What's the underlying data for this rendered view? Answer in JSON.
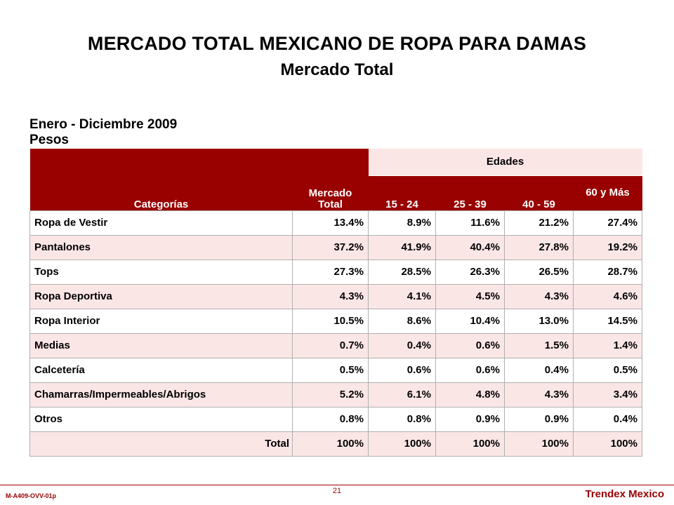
{
  "title": "MERCADO TOTAL MEXICANO DE ROPA PARA DAMAS",
  "subtitle": "Mercado Total",
  "period": "Enero - Diciembre 2009",
  "unit": "Pesos",
  "table": {
    "headers": {
      "categories": "Categorías",
      "market_total": "Mercado Total",
      "ages_group": "Edades",
      "ages": [
        "15 - 24",
        "25 - 39",
        "40 - 59",
        "60 y Más"
      ]
    },
    "rows": [
      {
        "category": "Ropa de Vestir",
        "values": [
          "13.4%",
          "8.9%",
          "11.6%",
          "21.2%",
          "27.4%"
        ]
      },
      {
        "category": "Pantalones",
        "values": [
          "37.2%",
          "41.9%",
          "40.4%",
          "27.8%",
          "19.2%"
        ]
      },
      {
        "category": "Tops",
        "values": [
          "27.3%",
          "28.5%",
          "26.3%",
          "26.5%",
          "28.7%"
        ]
      },
      {
        "category": "Ropa Deportiva",
        "values": [
          "4.3%",
          "4.1%",
          "4.5%",
          "4.3%",
          "4.6%"
        ]
      },
      {
        "category": "Ropa Interior",
        "values": [
          "10.5%",
          "8.6%",
          "10.4%",
          "13.0%",
          "14.5%"
        ]
      },
      {
        "category": "Medias",
        "values": [
          "0.7%",
          "0.4%",
          "0.6%",
          "1.5%",
          "1.4%"
        ]
      },
      {
        "category": "Calcetería",
        "values": [
          "0.5%",
          "0.6%",
          "0.6%",
          "0.4%",
          "0.5%"
        ]
      },
      {
        "category": "Chamarras/Impermeables/Abrigos",
        "values": [
          "5.2%",
          "6.1%",
          "4.8%",
          "4.3%",
          "3.4%"
        ]
      },
      {
        "category": "Otros",
        "values": [
          "0.8%",
          "0.8%",
          "0.9%",
          "0.9%",
          "0.4%"
        ]
      },
      {
        "category": "Total",
        "values": [
          "100%",
          "100%",
          "100%",
          "100%",
          "100%"
        ]
      }
    ]
  },
  "footer": {
    "page_number": "21",
    "code": "M-A409-OVV-01p",
    "brand": "Trendex Mexico"
  },
  "colors": {
    "header_red": "#990000",
    "row_pink": "#fbe6e6"
  }
}
